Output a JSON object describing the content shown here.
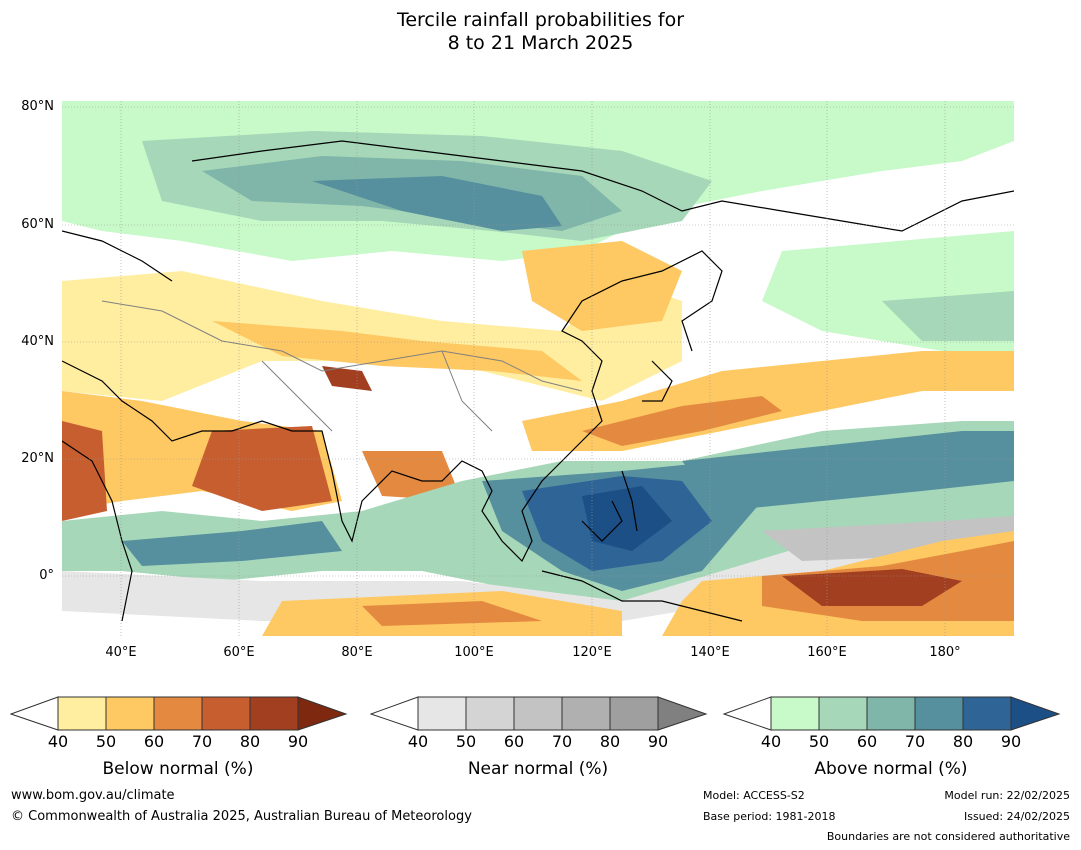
{
  "title_line1": "Tercile rainfall probabilities for",
  "title_line2": "8 to 21 March 2025",
  "map": {
    "lat_labels": [
      "80°N",
      "60°N",
      "40°N",
      "20°N",
      "0°"
    ],
    "lon_labels": [
      "40°E",
      "60°E",
      "80°E",
      "100°E",
      "120°E",
      "140°E",
      "160°E",
      "180°"
    ],
    "colors": {
      "ocean_bg": "#ffffff",
      "below": [
        "#ffeda0",
        "#fec862",
        "#e48a40",
        "#c75e30",
        "#a13f20",
        "#7f2810"
      ],
      "near": [
        "#e6e6e6",
        "#d4d4d4",
        "#c3c3c3",
        "#b0b0b0",
        "#9f9f9f",
        "#808080"
      ],
      "above": [
        "#c7f9c9",
        "#a6d7b8",
        "#7fb6a9",
        "#568f9e",
        "#2f6497",
        "#1b4f86"
      ]
    }
  },
  "colorbars": [
    {
      "id": "below",
      "title": "Below normal (%)",
      "ticks": [
        "40",
        "50",
        "60",
        "70",
        "80",
        "90"
      ]
    },
    {
      "id": "near",
      "title": "Near normal (%)",
      "ticks": [
        "40",
        "50",
        "60",
        "70",
        "80",
        "90"
      ]
    },
    {
      "id": "above",
      "title": "Above normal (%)",
      "ticks": [
        "40",
        "50",
        "60",
        "70",
        "80",
        "90"
      ]
    }
  ],
  "footer": {
    "url": "www.bom.gov.au/climate",
    "copyright": "© Commonwealth of Australia 2025, Australian Bureau of Meteorology",
    "model": "Model: ACCESS-S2",
    "base_period": "Base period: 1981-2018",
    "model_run": "Model run: 22/02/2025",
    "issued": "Issued: 24/02/2025",
    "boundaries": "Boundaries are not considered authoritative"
  }
}
